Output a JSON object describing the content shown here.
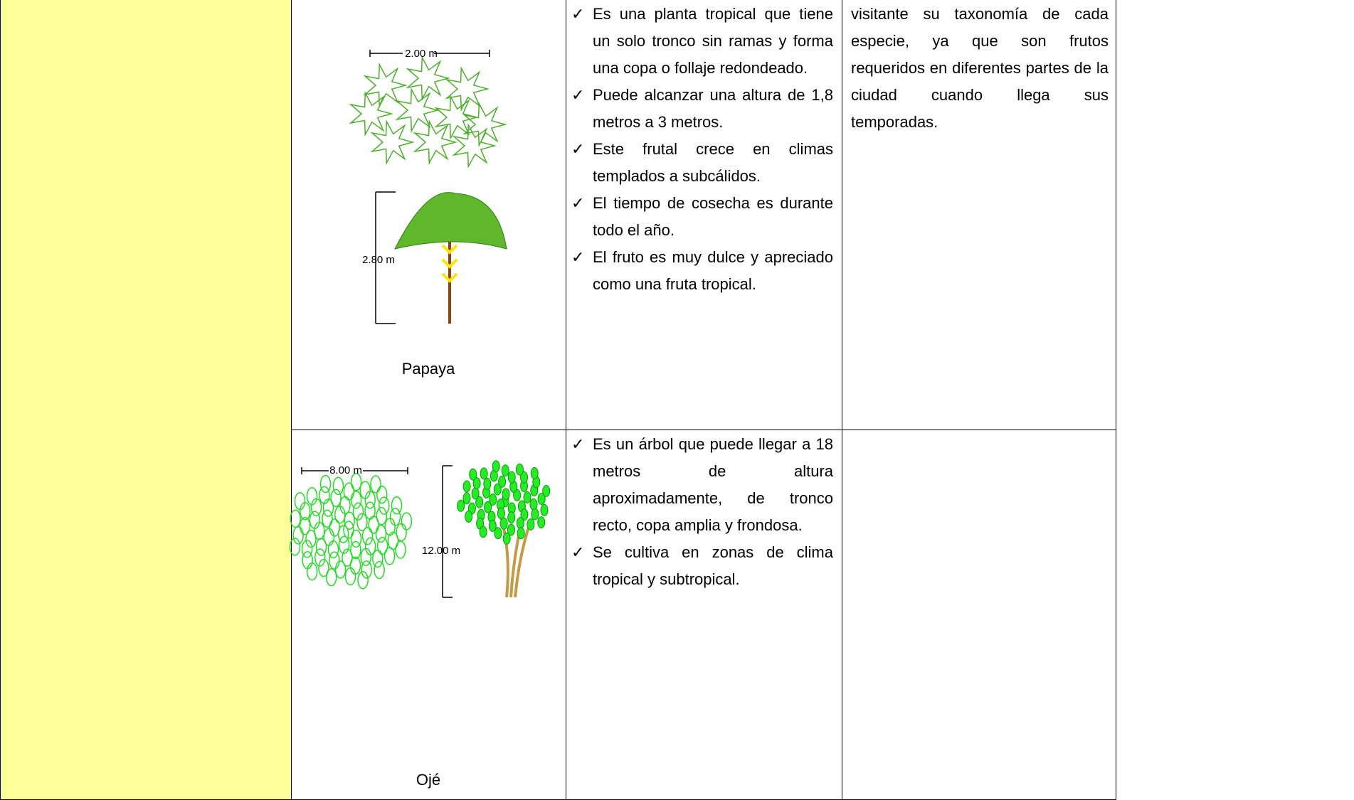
{
  "bullet_marker": "✓",
  "table": {
    "rows": [
      {
        "species": "Papaya",
        "dimensions": [
          "2.00 m",
          "2.80 m"
        ],
        "bullets": [
          "Es una planta tropical que tiene un solo tronco sin ramas y forma una copa o follaje redondeado.",
          "Puede alcanzar una altura de 1,8 metros a 3 metros.",
          "Este frutal crece en climas templados a subcálidos.",
          "El tiempo de cosecha es durante todo el año.",
          "El fruto es muy dulce y apreciado como una fruta tropical."
        ],
        "note": "visitante su taxonomía de cada especie, ya que son frutos requeridos en diferentes partes de la ciudad cuando llega sus temporadas."
      },
      {
        "species": "Ojé",
        "dimensions": [
          "8.00 m",
          "12.00 m"
        ],
        "bullets": [
          "Es un árbol que puede llegar a 18 metros de altura aproximadamente, de tronco recto, copa amplia y frondosa.",
          "Se cultiva en zonas de clima tropical y subtropical."
        ]
      }
    ]
  }
}
